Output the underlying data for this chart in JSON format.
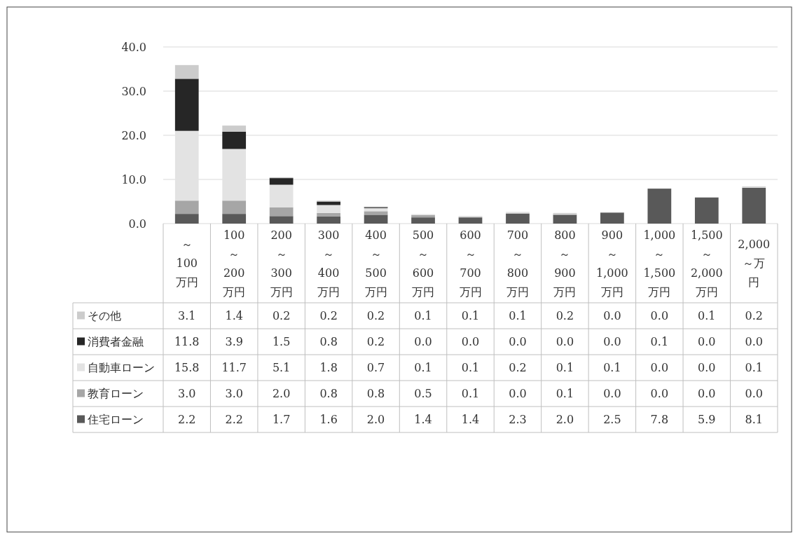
{
  "chart_data": {
    "type": "bar",
    "stacked": true,
    "categories": [
      "～100万円",
      "100～200万円",
      "200～300万円",
      "300～400万円",
      "400～500万円",
      "500～600万円",
      "600～700万円",
      "700～800万円",
      "800～900万円",
      "900～1,000万円",
      "1,000～1,500万円",
      "1,500～2,000万円",
      "2,000～万円"
    ],
    "series": [
      {
        "name": "住宅ローン",
        "color": "#595959",
        "values": [
          2.2,
          2.2,
          1.7,
          1.6,
          2.0,
          1.4,
          1.4,
          2.3,
          2.0,
          2.5,
          7.8,
          5.9,
          8.1
        ],
        "value_labels": [
          "2.2",
          "2.2",
          "1.7",
          "1.6",
          "2.0",
          "1.4",
          "1.4",
          "2.3",
          "2.0",
          "2.5",
          "7.8",
          "5.9",
          "8.1"
        ]
      },
      {
        "name": "教育ローン",
        "color": "#a6a6a6",
        "values": [
          3.0,
          3.0,
          2.0,
          0.8,
          0.8,
          0.5,
          0.1,
          0.0,
          0.1,
          0.0,
          0.0,
          0.0,
          0.0
        ],
        "value_labels": [
          "3.0",
          "3.0",
          "2.0",
          "0.8",
          "0.8",
          "0.5",
          "0.1",
          "0.0",
          "0.1",
          "0.0",
          "0.0",
          "0.0",
          "0.0"
        ]
      },
      {
        "name": "自動車ローン",
        "color": "#e3e3e3",
        "values": [
          15.8,
          11.7,
          5.1,
          1.8,
          0.7,
          0.1,
          0.1,
          0.2,
          0.1,
          0.1,
          0.0,
          0.0,
          0.1
        ],
        "value_labels": [
          "15.8",
          "11.7",
          "5.1",
          "1.8",
          "0.7",
          "0.1",
          "0.1",
          "0.2",
          "0.1",
          "0.1",
          "0.0",
          "0.0",
          "0.1"
        ]
      },
      {
        "name": "消費者金融",
        "color": "#262626",
        "values": [
          11.8,
          3.9,
          1.5,
          0.8,
          0.2,
          0.0,
          0.0,
          0.0,
          0.0,
          0.0,
          0.1,
          0.0,
          0.0
        ],
        "value_labels": [
          "11.8",
          "3.9",
          "1.5",
          "0.8",
          "0.2",
          "0.0",
          "0.0",
          "0.0",
          "0.0",
          "0.0",
          "0.1",
          "0.0",
          "0.0"
        ]
      },
      {
        "name": "その他",
        "color": "#cccccc",
        "values": [
          3.1,
          1.4,
          0.2,
          0.2,
          0.2,
          0.1,
          0.1,
          0.1,
          0.2,
          0.0,
          0.0,
          0.1,
          0.2
        ],
        "value_labels": [
          "3.1",
          "1.4",
          "0.2",
          "0.2",
          "0.2",
          "0.1",
          "0.1",
          "0.1",
          "0.2",
          "0.0",
          "0.0",
          "0.1",
          "0.2"
        ]
      }
    ],
    "ylim": [
      0,
      40
    ],
    "yticks": [
      {
        "value": 0,
        "label": "0.0"
      },
      {
        "value": 10,
        "label": "10.0"
      },
      {
        "value": 20,
        "label": "20.0"
      },
      {
        "value": 30,
        "label": "30.0"
      },
      {
        "value": 40,
        "label": "40.0"
      }
    ],
    "grid": "y",
    "legend": "bottom"
  }
}
